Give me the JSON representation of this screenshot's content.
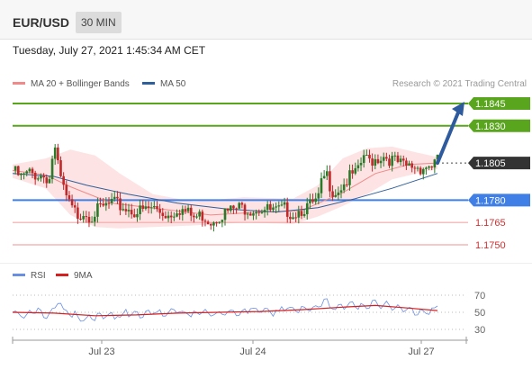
{
  "header": {
    "symbol": "EUR/USD",
    "timeframe": "30 MIN",
    "datetime": "Tuesday, July 27, 2021 1:45:34 AM CET"
  },
  "legend": {
    "items": [
      {
        "label": "MA 20 + Bollinger Bands",
        "color": "#f08a8a"
      },
      {
        "label": "MA 50",
        "color": "#2f5f9a"
      }
    ],
    "credit": "Research © 2021 Trading Central"
  },
  "rsi_legend": {
    "items": [
      {
        "label": "RSI",
        "color": "#6a8ee0"
      },
      {
        "label": "9MA",
        "color": "#d42020"
      }
    ]
  },
  "colors": {
    "resistance": "#5aa51e",
    "pivot": "#3f7fe6",
    "support": "#f4a8a8",
    "support_text": "#d03030",
    "current_price_bg": "#333333",
    "arrow": "#2e5a9e",
    "candle_up": "#2a7a2a",
    "candle_down": "#c0282a",
    "band_fill": "#fde0e0"
  },
  "chart_data": [
    {
      "type": "candlestick",
      "title": "EUR/USD",
      "timeframe": "30 MIN",
      "x_tick_labels": [
        "Jul 23",
        "Jul 24",
        "Jul 27"
      ],
      "y_range": [
        1.1745,
        1.185
      ],
      "levels": {
        "resistance": [
          1.1845,
          1.183
        ],
        "current": 1.1805,
        "pivot": 1.178,
        "support": [
          1.1765,
          1.175
        ]
      },
      "price_path": [
        [
          0,
          1.18
        ],
        [
          4,
          1.1795
        ],
        [
          8,
          1.1798
        ],
        [
          12,
          1.1797
        ],
        [
          16,
          1.1796
        ],
        [
          18,
          1.1794
        ],
        [
          20,
          1.1818
        ],
        [
          22,
          1.1802
        ],
        [
          24,
          1.179
        ],
        [
          26,
          1.1782
        ],
        [
          28,
          1.1775
        ],
        [
          30,
          1.1772
        ],
        [
          32,
          1.177
        ],
        [
          34,
          1.1773
        ],
        [
          36,
          1.1771
        ],
        [
          38,
          1.1769
        ],
        [
          40,
          1.1772
        ],
        [
          44,
          1.1775
        ],
        [
          48,
          1.1778
        ],
        [
          52,
          1.1776
        ],
        [
          56,
          1.1774
        ],
        [
          60,
          1.1772
        ],
        [
          64,
          1.1773
        ],
        [
          68,
          1.1775
        ],
        [
          72,
          1.1772
        ],
        [
          76,
          1.177
        ],
        [
          80,
          1.1775
        ],
        [
          84,
          1.1772
        ],
        [
          88,
          1.1768
        ],
        [
          92,
          1.177
        ],
        [
          96,
          1.1766
        ],
        [
          100,
          1.177
        ],
        [
          104,
          1.1772
        ],
        [
          108,
          1.1774
        ],
        [
          112,
          1.1775
        ],
        [
          116,
          1.1774
        ],
        [
          120,
          1.1775
        ],
        [
          124,
          1.1773
        ],
        [
          128,
          1.1772
        ],
        [
          132,
          1.1774
        ],
        [
          136,
          1.1771
        ],
        [
          140,
          1.1774
        ],
        [
          144,
          1.1776
        ],
        [
          148,
          1.1779
        ],
        [
          150,
          1.1792
        ],
        [
          152,
          1.1798
        ],
        [
          154,
          1.179
        ],
        [
          156,
          1.1785
        ],
        [
          158,
          1.1788
        ],
        [
          160,
          1.179
        ],
        [
          164,
          1.1796
        ],
        [
          168,
          1.1799
        ],
        [
          170,
          1.1811
        ],
        [
          172,
          1.1806
        ],
        [
          176,
          1.1808
        ],
        [
          180,
          1.181
        ],
        [
          184,
          1.1807
        ],
        [
          188,
          1.1804
        ],
        [
          190,
          1.1802
        ],
        [
          194,
          1.1803
        ],
        [
          198,
          1.1802
        ],
        [
          202,
          1.1803
        ],
        [
          206,
          1.1806
        ]
      ],
      "ma20": [
        [
          0,
          1.18
        ],
        [
          16,
          1.1797
        ],
        [
          28,
          1.1789
        ],
        [
          48,
          1.1778
        ],
        [
          72,
          1.1774
        ],
        [
          96,
          1.177
        ],
        [
          120,
          1.1772
        ],
        [
          140,
          1.1773
        ],
        [
          160,
          1.1785
        ],
        [
          176,
          1.1798
        ],
        [
          192,
          1.1804
        ],
        [
          206,
          1.1805
        ]
      ],
      "ma50": [
        [
          0,
          1.1798
        ],
        [
          20,
          1.1796
        ],
        [
          36,
          1.179
        ],
        [
          56,
          1.1784
        ],
        [
          80,
          1.1778
        ],
        [
          104,
          1.1774
        ],
        [
          128,
          1.1772
        ],
        [
          148,
          1.1775
        ],
        [
          166,
          1.1781
        ],
        [
          184,
          1.1788
        ],
        [
          206,
          1.1798
        ]
      ],
      "bollinger_upper": [
        [
          0,
          1.1804
        ],
        [
          16,
          1.1808
        ],
        [
          28,
          1.1814
        ],
        [
          40,
          1.181
        ],
        [
          52,
          1.1798
        ],
        [
          68,
          1.1784
        ],
        [
          88,
          1.1779
        ],
        [
          112,
          1.1782
        ],
        [
          136,
          1.1781
        ],
        [
          148,
          1.179
        ],
        [
          160,
          1.1808
        ],
        [
          172,
          1.1815
        ],
        [
          184,
          1.1816
        ],
        [
          196,
          1.1812
        ],
        [
          206,
          1.1809
        ]
      ],
      "bollinger_lower": [
        [
          0,
          1.1795
        ],
        [
          16,
          1.1788
        ],
        [
          28,
          1.177
        ],
        [
          40,
          1.1762
        ],
        [
          52,
          1.1761
        ],
        [
          68,
          1.1762
        ],
        [
          88,
          1.1763
        ],
        [
          112,
          1.1765
        ],
        [
          136,
          1.1764
        ],
        [
          148,
          1.1769
        ],
        [
          160,
          1.1776
        ],
        [
          172,
          1.1784
        ],
        [
          184,
          1.1794
        ],
        [
          196,
          1.1798
        ],
        [
          206,
          1.1801
        ]
      ],
      "projection": {
        "from": 1.1805,
        "to": 1.1845
      }
    },
    {
      "type": "line",
      "title": "RSI",
      "y_ticks": [
        70,
        50,
        30
      ],
      "ylim": [
        20,
        80
      ],
      "series": [
        {
          "name": "RSI",
          "values": [
            [
              0,
              50
            ],
            [
              6,
              46
            ],
            [
              12,
              52
            ],
            [
              18,
              44
            ],
            [
              22,
              62
            ],
            [
              26,
              48
            ],
            [
              30,
              47
            ],
            [
              34,
              42
            ],
            [
              38,
              44
            ],
            [
              44,
              46
            ],
            [
              50,
              47
            ],
            [
              56,
              49
            ],
            [
              62,
              46
            ],
            [
              68,
              50
            ],
            [
              74,
              47
            ],
            [
              80,
              52
            ],
            [
              86,
              48
            ],
            [
              92,
              51
            ],
            [
              98,
              47
            ],
            [
              104,
              52
            ],
            [
              110,
              50
            ],
            [
              116,
              55
            ],
            [
              122,
              52
            ],
            [
              128,
              49
            ],
            [
              134,
              56
            ],
            [
              140,
              52
            ],
            [
              146,
              55
            ],
            [
              152,
              63
            ],
            [
              158,
              54
            ],
            [
              164,
              60
            ],
            [
              170,
              56
            ],
            [
              176,
              60
            ],
            [
              182,
              58
            ],
            [
              188,
              55
            ],
            [
              194,
              52
            ],
            [
              200,
              50
            ],
            [
              206,
              53
            ]
          ]
        },
        {
          "name": "9MA",
          "values": [
            [
              0,
              50
            ],
            [
              20,
              49
            ],
            [
              40,
              46
            ],
            [
              60,
              47
            ],
            [
              80,
              49
            ],
            [
              100,
              50
            ],
            [
              120,
              51
            ],
            [
              140,
              53
            ],
            [
              160,
              56
            ],
            [
              176,
              58
            ],
            [
              192,
              55
            ],
            [
              206,
              52
            ]
          ]
        }
      ]
    }
  ]
}
